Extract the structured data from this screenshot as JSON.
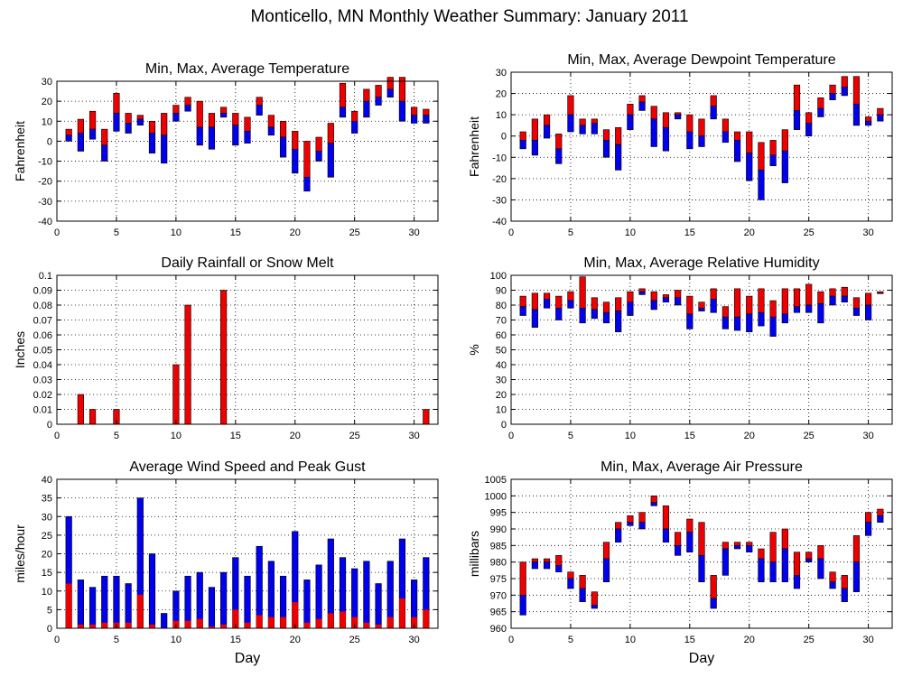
{
  "figure": {
    "title": "Monticello, MN Monthly Weather Summary: January 2011",
    "xlabel": "Day"
  },
  "colors": {
    "red": "#ee0000",
    "blue": "#0000ee",
    "grid": "#000000"
  },
  "chart_data": [
    {
      "id": "temp",
      "type": "bar",
      "variant": "min-avg-max",
      "title": "Min, Max, Average Temperature",
      "ylabel": "Fahrenheit",
      "xlabel": "",
      "xlim": [
        0,
        32
      ],
      "xticks": [
        0,
        5,
        10,
        15,
        20,
        25,
        30
      ],
      "ylim": [
        -40,
        30
      ],
      "yticks": [
        -40,
        -30,
        -20,
        -10,
        0,
        10,
        20,
        30
      ],
      "grid": true,
      "days": [
        1,
        2,
        3,
        4,
        5,
        6,
        7,
        8,
        9,
        10,
        11,
        12,
        13,
        14,
        15,
        16,
        17,
        18,
        19,
        20,
        21,
        22,
        23,
        24,
        25,
        26,
        27,
        28,
        29,
        30,
        31
      ],
      "min": [
        0,
        -5,
        1,
        -10,
        5,
        4,
        8,
        -6,
        -11,
        10,
        15,
        -2,
        -4,
        12,
        -2,
        -1,
        13,
        3,
        -8,
        -16,
        -25,
        -10,
        -18,
        12,
        4,
        12,
        18,
        22,
        10,
        9,
        9
      ],
      "avg": [
        3,
        4,
        6,
        -2,
        14,
        9,
        11,
        4,
        3,
        14,
        18,
        7,
        7,
        14,
        8,
        5,
        18,
        7,
        2,
        -4,
        -18,
        -5,
        -1,
        17,
        10,
        20,
        22,
        26,
        20,
        13,
        13
      ],
      "max": [
        6,
        11,
        15,
        6,
        24,
        14,
        13,
        10,
        14,
        18,
        22,
        20,
        14,
        17,
        14,
        12,
        22,
        13,
        10,
        5,
        0,
        2,
        9,
        29,
        15,
        26,
        28,
        32,
        32,
        17,
        16
      ]
    },
    {
      "id": "dew",
      "type": "bar",
      "variant": "min-avg-max",
      "title": "Min, Max, Average Dewpoint Temperature",
      "ylabel": "Fahrenheit",
      "xlabel": "",
      "xlim": [
        0,
        32
      ],
      "xticks": [
        0,
        5,
        10,
        15,
        20,
        25,
        30
      ],
      "ylim": [
        -40,
        30
      ],
      "yticks": [
        -40,
        -30,
        -20,
        -10,
        0,
        10,
        20,
        30
      ],
      "grid": true,
      "days": [
        1,
        2,
        3,
        4,
        5,
        6,
        7,
        8,
        9,
        10,
        11,
        12,
        13,
        14,
        15,
        16,
        17,
        18,
        19,
        20,
        21,
        22,
        23,
        24,
        25,
        26,
        27,
        28,
        29,
        30,
        31
      ],
      "min": [
        -6,
        -9,
        -1,
        -13,
        2,
        1,
        1,
        -10,
        -16,
        3,
        12,
        -5,
        -7,
        8,
        -6,
        -5,
        8,
        -3,
        -12,
        -21,
        -30,
        -14,
        -22,
        3,
        0,
        9,
        17,
        19,
        5,
        5,
        7
      ],
      "avg": [
        -2,
        -2,
        5,
        -6,
        10,
        5,
        6,
        -2,
        -4,
        10,
        16,
        8,
        4,
        10,
        2,
        0,
        14,
        2,
        -2,
        -8,
        -16,
        -9,
        -7,
        12,
        6,
        13,
        20,
        23,
        15,
        7,
        10
      ],
      "max": [
        2,
        8,
        10,
        1,
        19,
        8,
        8,
        3,
        4,
        15,
        19,
        14,
        11,
        11,
        10,
        8,
        19,
        8,
        2,
        2,
        -3,
        -2,
        3,
        24,
        11,
        18,
        24,
        28,
        28,
        9,
        13
      ]
    },
    {
      "id": "rain",
      "type": "bar",
      "variant": "single",
      "title": "Daily Rainfall or Snow Melt",
      "ylabel": "Inches",
      "xlabel": "",
      "xlim": [
        0,
        32
      ],
      "xticks": [
        0,
        5,
        10,
        15,
        20,
        25,
        30
      ],
      "ylim": [
        0,
        0.1
      ],
      "yticks": [
        0,
        0.01,
        0.02,
        0.03,
        0.04,
        0.05,
        0.06,
        0.07,
        0.08,
        0.09,
        0.1
      ],
      "ytick_labels": [
        "0",
        "0.01",
        "0.02",
        "0.03",
        "0.04",
        "0.05",
        "0.06",
        "0.07",
        "0.08",
        "0.09",
        "0.1"
      ],
      "grid": true,
      "days": [
        2,
        3,
        5,
        10,
        11,
        14,
        31
      ],
      "values": [
        0.02,
        0.01,
        0.01,
        0.04,
        0.08,
        0.09,
        0.01
      ]
    },
    {
      "id": "rh",
      "type": "bar",
      "variant": "min-avg-max",
      "title": "Min, Max, Average Relative Humidity",
      "ylabel": "%",
      "xlabel": "",
      "xlim": [
        0,
        32
      ],
      "xticks": [
        0,
        5,
        10,
        15,
        20,
        25,
        30
      ],
      "ylim": [
        0,
        100
      ],
      "yticks": [
        0,
        10,
        20,
        30,
        40,
        50,
        60,
        70,
        80,
        90,
        100
      ],
      "grid": true,
      "days": [
        1,
        2,
        3,
        4,
        5,
        6,
        7,
        8,
        9,
        10,
        11,
        12,
        13,
        14,
        15,
        16,
        17,
        18,
        19,
        20,
        21,
        22,
        23,
        24,
        25,
        26,
        27,
        28,
        29,
        30,
        31
      ],
      "min": [
        73,
        65,
        78,
        70,
        78,
        68,
        71,
        68,
        62,
        73,
        87,
        77,
        82,
        80,
        64,
        76,
        75,
        64,
        63,
        62,
        66,
        59,
        68,
        75,
        75,
        68,
        80,
        82,
        73,
        70,
        88
      ],
      "avg": [
        79,
        77,
        84,
        78,
        83,
        78,
        77,
        75,
        76,
        82,
        89,
        83,
        85,
        85,
        74,
        78,
        84,
        72,
        72,
        74,
        75,
        72,
        74,
        79,
        80,
        81,
        86,
        86,
        78,
        80,
        88
      ],
      "max": [
        86,
        88,
        88,
        86,
        89,
        99,
        85,
        82,
        85,
        89,
        91,
        89,
        87,
        90,
        86,
        82,
        91,
        79,
        91,
        86,
        91,
        83,
        91,
        91,
        94,
        89,
        91,
        92,
        85,
        88,
        89
      ]
    },
    {
      "id": "wind",
      "type": "bar",
      "variant": "overlay",
      "title": "Average Wind Speed and Peak Gust",
      "ylabel": "miles/hour",
      "xlabel": "Day",
      "xlim": [
        0,
        32
      ],
      "xticks": [
        0,
        5,
        10,
        15,
        20,
        25,
        30
      ],
      "ylim": [
        0,
        40
      ],
      "yticks": [
        0,
        5,
        10,
        15,
        20,
        25,
        30,
        35,
        40
      ],
      "grid": true,
      "days": [
        1,
        2,
        3,
        4,
        5,
        6,
        7,
        8,
        9,
        10,
        11,
        12,
        13,
        14,
        15,
        16,
        17,
        18,
        19,
        20,
        21,
        22,
        23,
        24,
        25,
        26,
        27,
        28,
        29,
        30,
        31
      ],
      "gust": [
        30,
        13,
        11,
        14,
        14,
        12,
        35,
        20,
        4,
        10,
        14,
        15,
        11,
        15,
        19,
        14,
        22,
        18,
        14,
        26,
        13,
        17,
        24,
        19,
        16,
        18,
        12,
        18,
        24,
        13,
        19
      ],
      "avg": [
        12,
        1,
        1,
        1.5,
        1.5,
        1.5,
        9,
        1,
        0,
        2,
        2,
        2.5,
        0.5,
        1,
        5,
        1.5,
        3.5,
        3,
        3,
        7,
        1.5,
        2.5,
        4,
        4.5,
        3,
        1.5,
        1,
        3,
        8,
        3,
        5
      ]
    },
    {
      "id": "pres",
      "type": "bar",
      "variant": "min-avg-max",
      "title": "Min, Max, Average Air Pressure",
      "ylabel": "millibars",
      "xlabel": "Day",
      "xlim": [
        0,
        32
      ],
      "xticks": [
        0,
        5,
        10,
        15,
        20,
        25,
        30
      ],
      "ylim": [
        960,
        1005
      ],
      "yticks": [
        960,
        965,
        970,
        975,
        980,
        985,
        990,
        995,
        1000,
        1005
      ],
      "grid": true,
      "days": [
        1,
        2,
        3,
        4,
        5,
        6,
        7,
        8,
        9,
        10,
        11,
        12,
        13,
        14,
        15,
        16,
        17,
        18,
        19,
        20,
        21,
        22,
        23,
        24,
        25,
        26,
        27,
        28,
        29,
        30,
        31
      ],
      "min": [
        964,
        978,
        978,
        977,
        972,
        968,
        966,
        974,
        986,
        991,
        990,
        997,
        986,
        982,
        983,
        974,
        966,
        976,
        984,
        983,
        974,
        974,
        974,
        972,
        980,
        975,
        972,
        968,
        971,
        988,
        992
      ],
      "avg": [
        970,
        980,
        980,
        979,
        975,
        972,
        967,
        981,
        990,
        992,
        992,
        998,
        990,
        985,
        989,
        982,
        969,
        984,
        985,
        985,
        981,
        980,
        984,
        976,
        981,
        981,
        974,
        972,
        980,
        992,
        994
      ],
      "max": [
        980,
        981,
        981,
        982,
        977,
        976,
        971,
        986,
        992,
        994,
        995,
        1000,
        997,
        989,
        993,
        992,
        976,
        986,
        986,
        986,
        984,
        989,
        990,
        983,
        983,
        985,
        977,
        976,
        988,
        995,
        996
      ]
    }
  ]
}
